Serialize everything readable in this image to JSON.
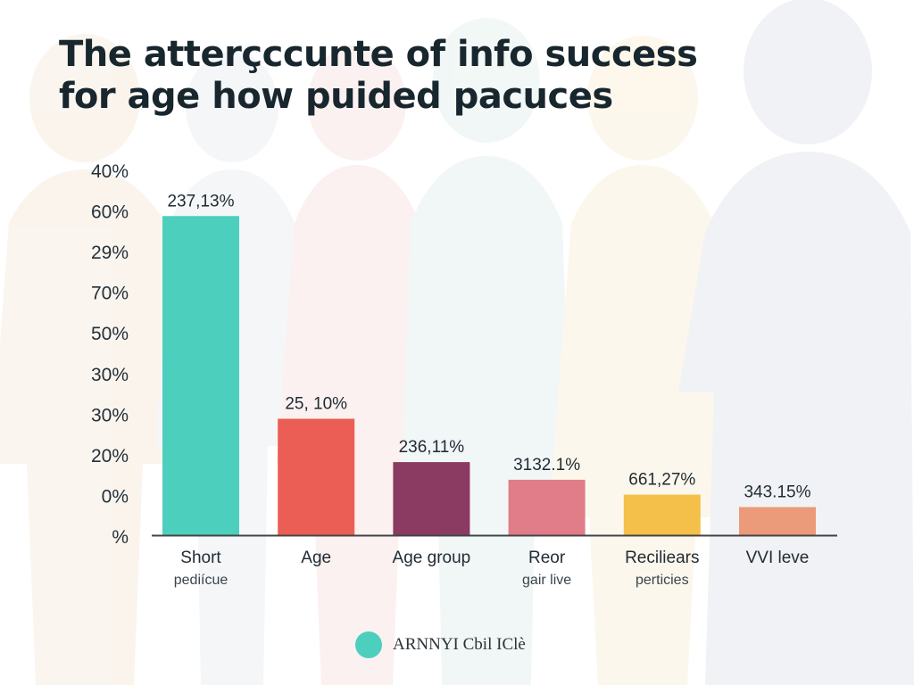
{
  "title_lines": [
    "The atterçccunte of info success",
    "for age how puided pacuces"
  ],
  "colors": {
    "background_figures": "#eef0f3",
    "axis": "#444444",
    "legend_swatch": "#4ccfbd"
  },
  "legend": {
    "label": "ARNNYI Cbil IClè"
  },
  "chart_data": {
    "type": "bar",
    "title": "The atterçccunte of info success for age how puided pacuces",
    "y_tick_labels": [
      "40%",
      "60%",
      "29%",
      "70%",
      "50%",
      "30%",
      "30%",
      "20%",
      "0%",
      "%"
    ],
    "categories": [
      [
        "Short",
        "pediícue"
      ],
      [
        "Age"
      ],
      [
        "Age group"
      ],
      [
        "Reor",
        "gair live"
      ],
      [
        "Reciliears",
        "perticies"
      ],
      [
        "VVI leve"
      ]
    ],
    "values": [
      79.5,
      29.0,
      18.2,
      13.8,
      10.1,
      7.0
    ],
    "value_scale_note_max": 100,
    "data_labels": [
      "237,13%",
      "25, 10%",
      "236,11%",
      "3132.1%",
      "661,27%",
      "343.15%"
    ],
    "bar_colors": [
      "#4ccfbd",
      "#eb5e55",
      "#8b3a62",
      "#e07d88",
      "#f5c04a",
      "#eb9a7a"
    ],
    "legend_placement": "bottom-center",
    "grid": false
  }
}
